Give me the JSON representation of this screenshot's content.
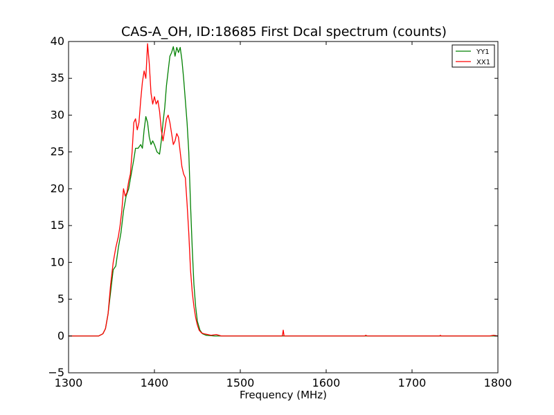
{
  "chart_data": {
    "type": "line",
    "title": "CAS-A_OH, ID:18685 First Dcal spectrum (counts)",
    "xlabel": "Frequency (MHz)",
    "ylabel": "",
    "xlim": [
      1300,
      1800
    ],
    "ylim": [
      -5,
      40
    ],
    "xticks": [
      "1300",
      "1400",
      "1500",
      "1600",
      "1700",
      "1800"
    ],
    "yticks": [
      "−5",
      "0",
      "5",
      "10",
      "15",
      "20",
      "25",
      "30",
      "35",
      "40"
    ],
    "grid": false,
    "legend_position": "top-right",
    "series": [
      {
        "name": "YY1",
        "color": "#008000",
        "points": [
          [
            1300,
            0
          ],
          [
            1320,
            0
          ],
          [
            1335,
            0
          ],
          [
            1340,
            0.3
          ],
          [
            1343,
            1
          ],
          [
            1346,
            3
          ],
          [
            1349,
            6
          ],
          [
            1352,
            9
          ],
          [
            1355,
            9.5
          ],
          [
            1358,
            12
          ],
          [
            1361,
            14
          ],
          [
            1364,
            17
          ],
          [
            1367,
            19
          ],
          [
            1370,
            20
          ],
          [
            1373,
            22
          ],
          [
            1376,
            24
          ],
          [
            1378,
            25.5
          ],
          [
            1381,
            25.5
          ],
          [
            1384,
            26
          ],
          [
            1386,
            25.5
          ],
          [
            1388,
            28
          ],
          [
            1390,
            29.8
          ],
          [
            1392,
            29
          ],
          [
            1394,
            27
          ],
          [
            1396,
            26
          ],
          [
            1398,
            26.5
          ],
          [
            1400,
            26
          ],
          [
            1403,
            25
          ],
          [
            1406,
            24.7
          ],
          [
            1408,
            26.5
          ],
          [
            1410,
            29
          ],
          [
            1412,
            31
          ],
          [
            1414,
            34
          ],
          [
            1416,
            36
          ],
          [
            1418,
            38
          ],
          [
            1420,
            38.5
          ],
          [
            1422,
            39.3
          ],
          [
            1424,
            38
          ],
          [
            1426,
            39.2
          ],
          [
            1428,
            38.5
          ],
          [
            1430,
            39.2
          ],
          [
            1432,
            37.5
          ],
          [
            1434,
            35
          ],
          [
            1436,
            32
          ],
          [
            1438,
            29
          ],
          [
            1440,
            25
          ],
          [
            1442,
            18
          ],
          [
            1444,
            12
          ],
          [
            1446,
            7
          ],
          [
            1448,
            4
          ],
          [
            1450,
            2
          ],
          [
            1453,
            0.8
          ],
          [
            1456,
            0.3
          ],
          [
            1460,
            0.1
          ],
          [
            1470,
            0
          ],
          [
            1500,
            0
          ],
          [
            1600,
            0
          ],
          [
            1700,
            0
          ],
          [
            1800,
            0
          ]
        ]
      },
      {
        "name": "XX1",
        "color": "#ff0000",
        "points": [
          [
            1300,
            0
          ],
          [
            1320,
            0
          ],
          [
            1335,
            0
          ],
          [
            1340,
            0.3
          ],
          [
            1343,
            1
          ],
          [
            1346,
            3
          ],
          [
            1349,
            7
          ],
          [
            1352,
            10
          ],
          [
            1355,
            12
          ],
          [
            1358,
            13.5
          ],
          [
            1360,
            15
          ],
          [
            1362,
            17
          ],
          [
            1364,
            20
          ],
          [
            1366,
            19
          ],
          [
            1368,
            19.5
          ],
          [
            1370,
            21
          ],
          [
            1372,
            22
          ],
          [
            1374,
            25
          ],
          [
            1376,
            29
          ],
          [
            1378,
            29.5
          ],
          [
            1380,
            28
          ],
          [
            1382,
            29
          ],
          [
            1384,
            32
          ],
          [
            1386,
            34.5
          ],
          [
            1388,
            36
          ],
          [
            1390,
            35
          ],
          [
            1392,
            39.7
          ],
          [
            1394,
            37
          ],
          [
            1396,
            33
          ],
          [
            1398,
            31.5
          ],
          [
            1400,
            32.5
          ],
          [
            1402,
            31.5
          ],
          [
            1404,
            32
          ],
          [
            1406,
            30.5
          ],
          [
            1408,
            28
          ],
          [
            1410,
            26.5
          ],
          [
            1412,
            28
          ],
          [
            1414,
            29.5
          ],
          [
            1416,
            30
          ],
          [
            1418,
            29
          ],
          [
            1420,
            27.5
          ],
          [
            1422,
            26
          ],
          [
            1424,
            26.5
          ],
          [
            1426,
            27.5
          ],
          [
            1428,
            27
          ],
          [
            1430,
            25
          ],
          [
            1432,
            23
          ],
          [
            1434,
            22
          ],
          [
            1436,
            21.5
          ],
          [
            1438,
            18
          ],
          [
            1440,
            14
          ],
          [
            1442,
            9
          ],
          [
            1444,
            6
          ],
          [
            1446,
            4
          ],
          [
            1448,
            2.5
          ],
          [
            1450,
            1.5
          ],
          [
            1452,
            0.8
          ],
          [
            1455,
            0.4
          ],
          [
            1458,
            0.3
          ],
          [
            1462,
            0.2
          ],
          [
            1466,
            0.1
          ],
          [
            1472,
            0.2
          ],
          [
            1478,
            0
          ],
          [
            1500,
            0
          ],
          [
            1549,
            0
          ],
          [
            1550,
            0.8
          ],
          [
            1551,
            0
          ],
          [
            1600,
            0
          ],
          [
            1645,
            0
          ],
          [
            1646,
            0.1
          ],
          [
            1648,
            0
          ],
          [
            1700,
            0
          ],
          [
            1732,
            0
          ],
          [
            1733,
            0.1
          ],
          [
            1734,
            0
          ],
          [
            1790,
            0
          ],
          [
            1795,
            0.1
          ],
          [
            1800,
            0
          ]
        ]
      }
    ]
  }
}
